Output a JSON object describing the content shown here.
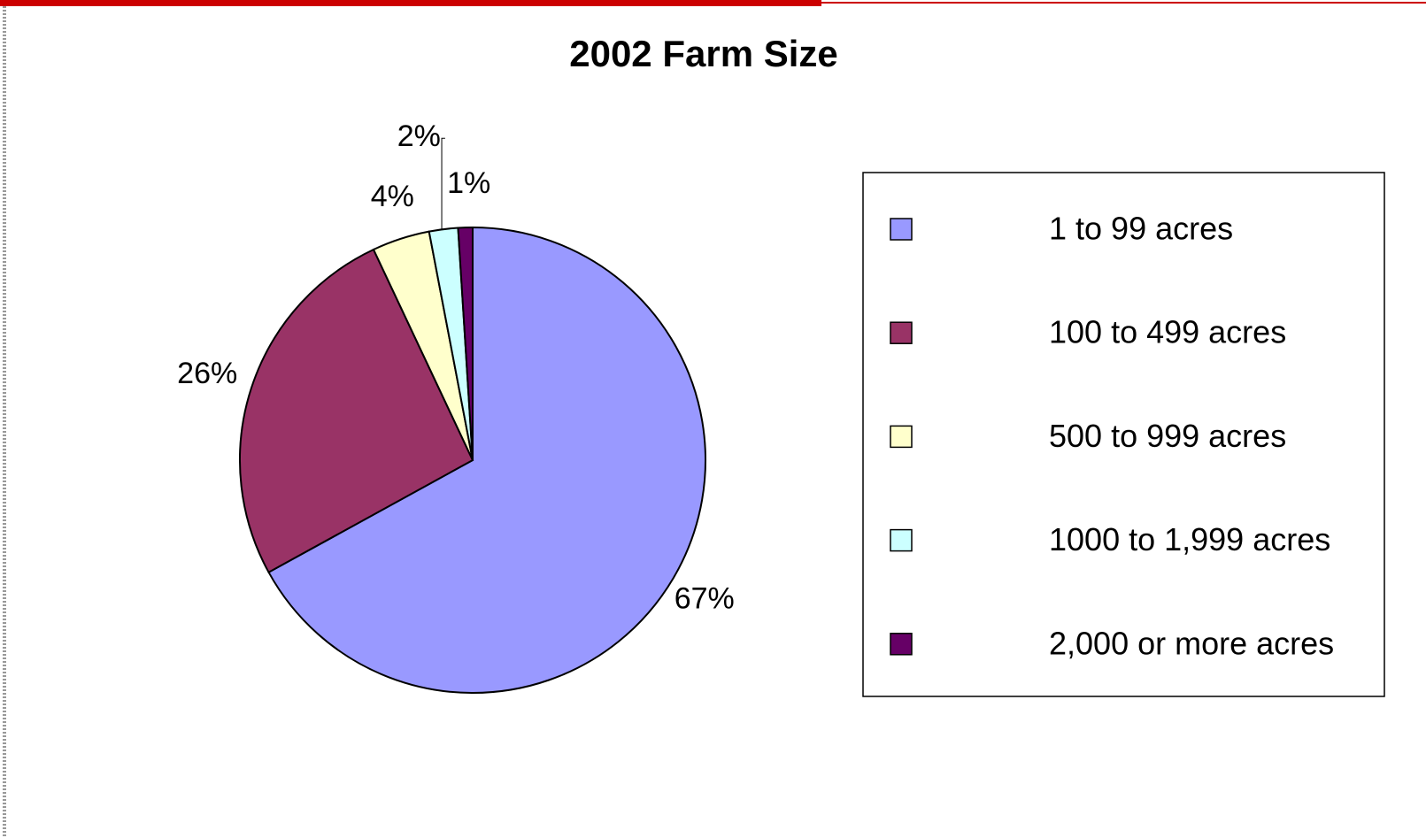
{
  "chart_data": {
    "type": "pie",
    "title": "2002 Farm Size",
    "categories": [
      "1 to 99 acres",
      "100 to 499 acres",
      "500 to 999 acres",
      "1000 to 1,999 acres",
      "2,000 or more acres"
    ],
    "values": [
      67,
      26,
      4,
      2,
      1
    ],
    "value_labels": [
      "67%",
      "26%",
      "4%",
      "2%",
      "1%"
    ],
    "colors": [
      "#9999ff",
      "#993366",
      "#ffffcc",
      "#ccffff",
      "#660066"
    ],
    "legend": "right"
  }
}
